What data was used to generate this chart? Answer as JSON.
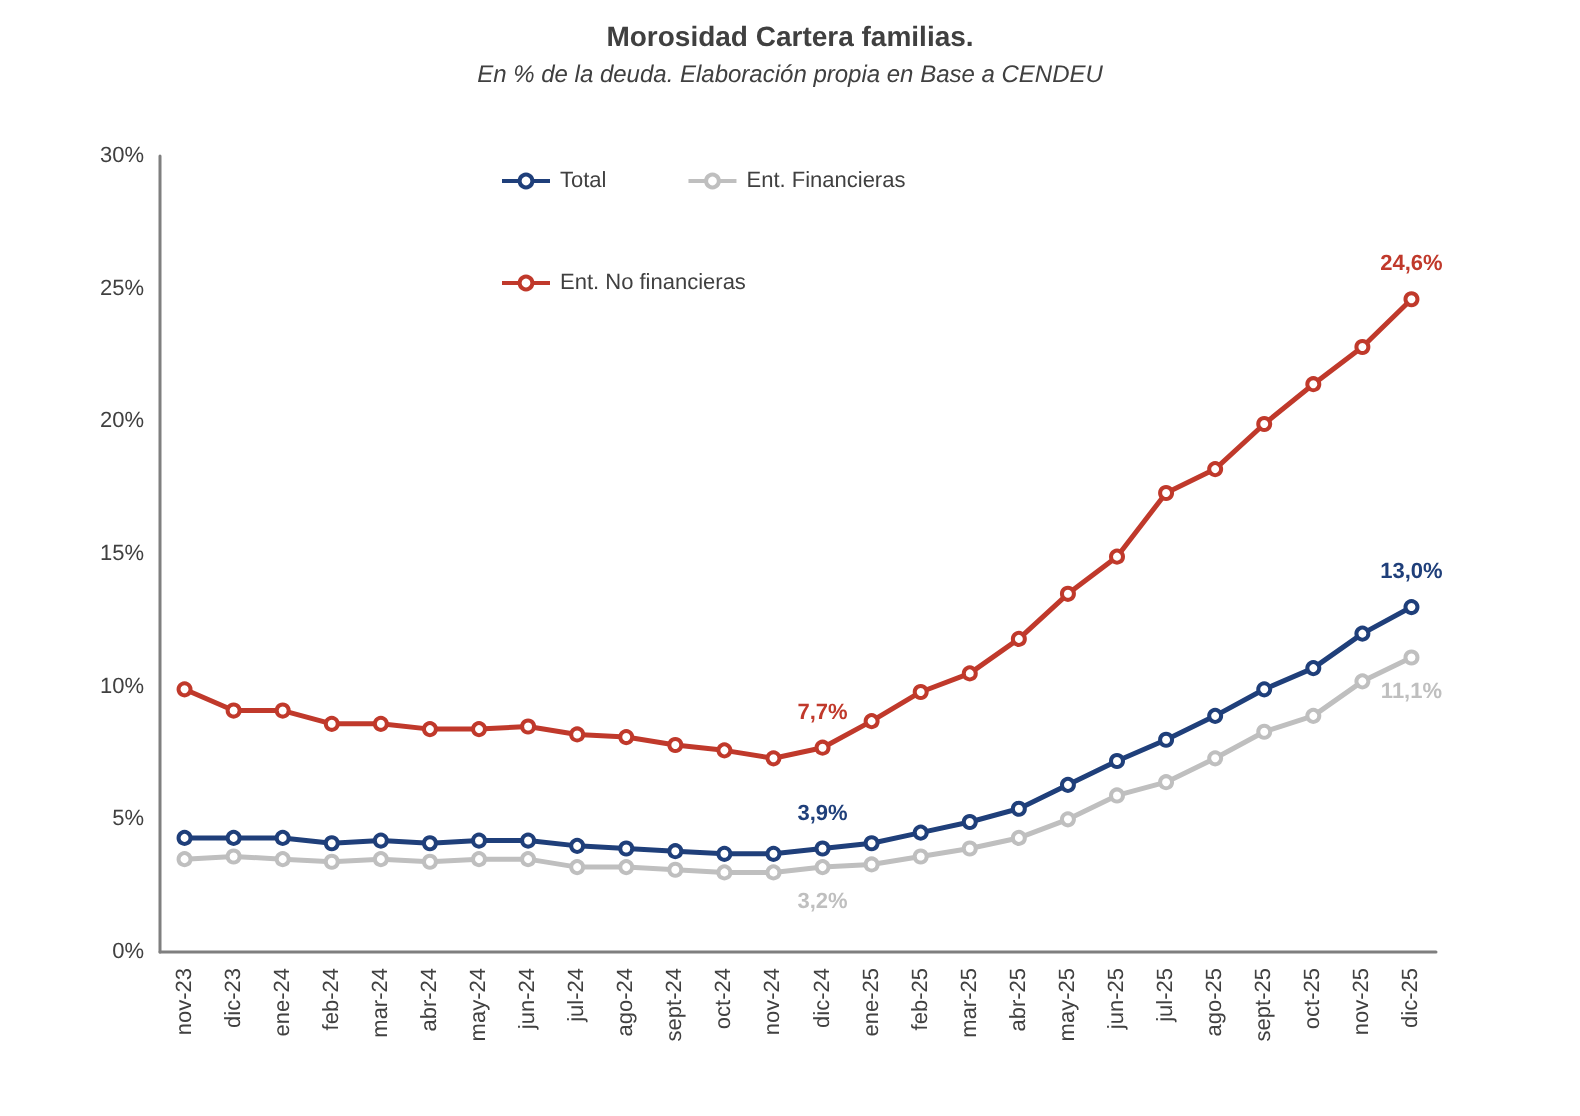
{
  "chart_data": {
    "type": "line",
    "title": "Morosidad Cartera familias.",
    "subtitle": "En % de la deuda. Elaboración propia en Base a CENDEU",
    "categories": [
      "nov-23",
      "dic-23",
      "ene-24",
      "feb-24",
      "mar-24",
      "abr-24",
      "may-24",
      "jun-24",
      "jul-24",
      "ago-24",
      "sept-24",
      "oct-24",
      "nov-24",
      "dic-24",
      "ene-25",
      "feb-25",
      "mar-25",
      "abr-25",
      "may-25",
      "jun-25",
      "jul-25",
      "ago-25",
      "sept-25",
      "oct-25",
      "nov-25",
      "dic-25"
    ],
    "series": [
      {
        "name": "Total",
        "color": "#1f3f7a",
        "values": [
          4.3,
          4.3,
          4.3,
          4.1,
          4.2,
          4.1,
          4.2,
          4.2,
          4.0,
          3.9,
          3.8,
          3.7,
          3.7,
          3.9,
          4.1,
          4.5,
          4.9,
          5.4,
          6.3,
          7.2,
          8.0,
          8.9,
          9.9,
          10.7,
          12.0,
          13.0
        ],
        "value_labels": [
          null,
          null,
          null,
          null,
          null,
          null,
          null,
          null,
          null,
          null,
          null,
          null,
          null,
          "3,9%",
          null,
          null,
          null,
          null,
          null,
          null,
          null,
          null,
          null,
          null,
          null,
          "13,0%"
        ]
      },
      {
        "name": "Ent. Financieras",
        "color": "#bfbfbf",
        "values": [
          3.5,
          3.6,
          3.5,
          3.4,
          3.5,
          3.4,
          3.5,
          3.5,
          3.2,
          3.2,
          3.1,
          3.0,
          3.0,
          3.2,
          3.3,
          3.6,
          3.9,
          4.3,
          5.0,
          5.9,
          6.4,
          7.3,
          8.3,
          8.9,
          10.2,
          11.1
        ],
        "value_labels": [
          null,
          null,
          null,
          null,
          null,
          null,
          null,
          null,
          null,
          null,
          null,
          null,
          null,
          "3,2%",
          null,
          null,
          null,
          null,
          null,
          null,
          null,
          null,
          null,
          null,
          null,
          "11,1%"
        ]
      },
      {
        "name": "Ent. No financieras",
        "color": "#c0392b",
        "values": [
          9.9,
          9.1,
          9.1,
          8.6,
          8.6,
          8.4,
          8.4,
          8.5,
          8.2,
          8.1,
          7.8,
          7.6,
          7.3,
          7.7,
          8.7,
          9.8,
          10.5,
          11.8,
          13.5,
          14.9,
          17.3,
          18.2,
          19.9,
          21.4,
          22.8,
          24.6
        ],
        "value_labels": [
          null,
          null,
          null,
          null,
          null,
          null,
          null,
          null,
          null,
          null,
          null,
          null,
          null,
          "7,7%",
          null,
          null,
          null,
          null,
          null,
          null,
          null,
          null,
          null,
          null,
          null,
          "24,6%"
        ]
      }
    ],
    "ylim": [
      0,
      30
    ],
    "yticks": [
      {
        "value": 0,
        "label": "0%"
      },
      {
        "value": 5,
        "label": "5%"
      },
      {
        "value": 10,
        "label": "10%"
      },
      {
        "value": 15,
        "label": "15%"
      },
      {
        "value": 20,
        "label": "20%"
      },
      {
        "value": 25,
        "label": "25%"
      },
      {
        "value": 30,
        "label": "30%"
      }
    ],
    "grid": false,
    "legend": "top",
    "marker": "circle",
    "line_style": "solid"
  }
}
